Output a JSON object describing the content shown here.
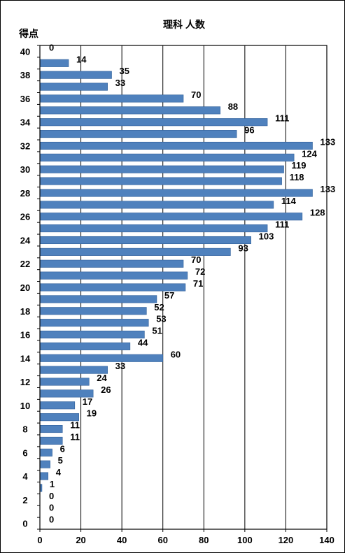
{
  "chart_data": {
    "type": "bar",
    "orientation": "horizontal",
    "title": "理科 人数",
    "ylabel": "得点",
    "xlabel": "",
    "xlim": [
      0,
      140
    ],
    "x_ticks": [
      0,
      20,
      40,
      60,
      80,
      100,
      120,
      140
    ],
    "y_ticks": [
      40,
      38,
      36,
      34,
      32,
      30,
      28,
      26,
      24,
      22,
      20,
      18,
      16,
      14,
      12,
      10,
      8,
      6,
      4,
      2,
      0
    ],
    "grid": "vertical",
    "legend": "none",
    "bar_color": "#4f81bd",
    "categories": [
      40,
      39,
      38,
      37,
      36,
      35,
      34,
      33,
      32,
      31,
      30,
      29,
      28,
      27,
      26,
      25,
      24,
      23,
      22,
      21,
      20,
      19,
      18,
      17,
      16,
      15,
      14,
      13,
      12,
      11,
      10,
      9,
      8,
      7,
      6,
      5,
      4,
      3,
      2,
      1,
      0
    ],
    "values": [
      0,
      14,
      35,
      33,
      70,
      88,
      111,
      96,
      133,
      124,
      119,
      118,
      133,
      114,
      128,
      111,
      103,
      93,
      70,
      72,
      71,
      57,
      52,
      53,
      51,
      44,
      60,
      33,
      24,
      26,
      17,
      19,
      11,
      11,
      6,
      5,
      4,
      1,
      0,
      0,
      0
    ]
  }
}
